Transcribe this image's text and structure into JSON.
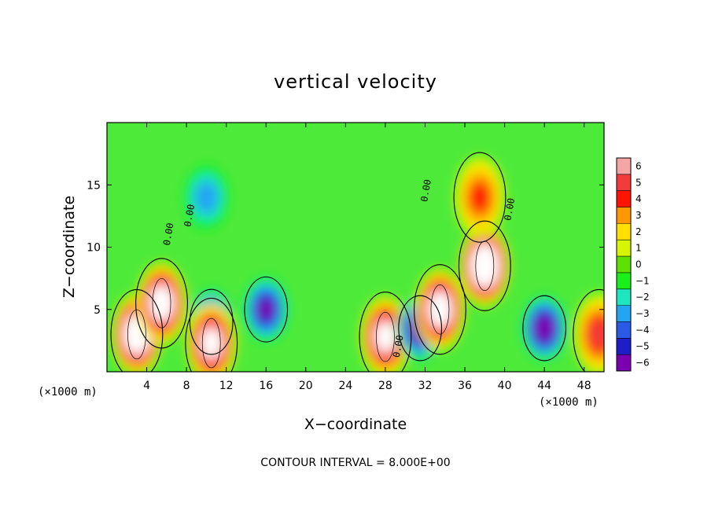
{
  "chart_data": {
    "type": "heatmap",
    "title": "vertical velocity",
    "xlabel": "X−coordinate",
    "ylabel": "Z−coordinate",
    "x_units_left": "(×1000 m)",
    "x_units_right": "(×1000 m)",
    "xlim": [
      0,
      50
    ],
    "ylim": [
      0,
      20
    ],
    "x_ticks": [
      4,
      8,
      12,
      16,
      20,
      24,
      28,
      32,
      36,
      40,
      44,
      48
    ],
    "y_ticks": [
      5,
      10,
      15
    ],
    "colorbar": {
      "levels": [
        6,
        5,
        4,
        3,
        2,
        1,
        0,
        -1,
        -2,
        -3,
        -4,
        -5,
        -6
      ],
      "labels": [
        "6",
        "5",
        "4",
        "3",
        "2",
        "1",
        "0",
        "−1",
        "−2",
        "−3",
        "−4",
        "−5",
        "−6"
      ],
      "colors": [
        "#f4a6a6",
        "#f23b3b",
        "#ff1400",
        "#ff9800",
        "#ffe000",
        "#d6f500",
        "#5ee000",
        "#19f019",
        "#1ee6be",
        "#22a6f2",
        "#2a5ae6",
        "#1e1ec8",
        "#7a00b0"
      ],
      "background_zero_color": "#4eea3a",
      "saturated_positive_color": "#ffffff"
    },
    "contour_labels": [
      "0.00",
      "0.00",
      "0.00",
      "0.00",
      "0.00"
    ],
    "contour_interval_text": "CONTOUR INTERVAL = 8.000E+00",
    "features": [
      {
        "kind": "updraft",
        "x": 3.0,
        "z": 3.0,
        "peak": 10
      },
      {
        "kind": "updraft",
        "x": 5.5,
        "z": 5.5,
        "peak": 9
      },
      {
        "kind": "downdraft",
        "x": 10.5,
        "z": 4.0,
        "peak": -7
      },
      {
        "kind": "updraft",
        "x": 10.5,
        "z": 2.3,
        "peak": 8
      },
      {
        "kind": "downdraft",
        "x": 16.0,
        "z": 5.0,
        "peak": -6
      },
      {
        "kind": "downdraft",
        "x": 10.0,
        "z": 14.0,
        "peak": -3
      },
      {
        "kind": "updraft",
        "x": 28.0,
        "z": 2.8,
        "peak": 8
      },
      {
        "kind": "downdraft",
        "x": 31.5,
        "z": 3.5,
        "peak": -7
      },
      {
        "kind": "updraft",
        "x": 33.5,
        "z": 5.0,
        "peak": 9
      },
      {
        "kind": "updraft",
        "x": 38.0,
        "z": 8.5,
        "peak": 11
      },
      {
        "kind": "updraft",
        "x": 37.5,
        "z": 14.0,
        "peak": 4
      },
      {
        "kind": "downdraft",
        "x": 44.0,
        "z": 3.5,
        "peak": -7
      },
      {
        "kind": "updraft",
        "x": 49.5,
        "z": 3.0,
        "peak": 5
      }
    ]
  }
}
